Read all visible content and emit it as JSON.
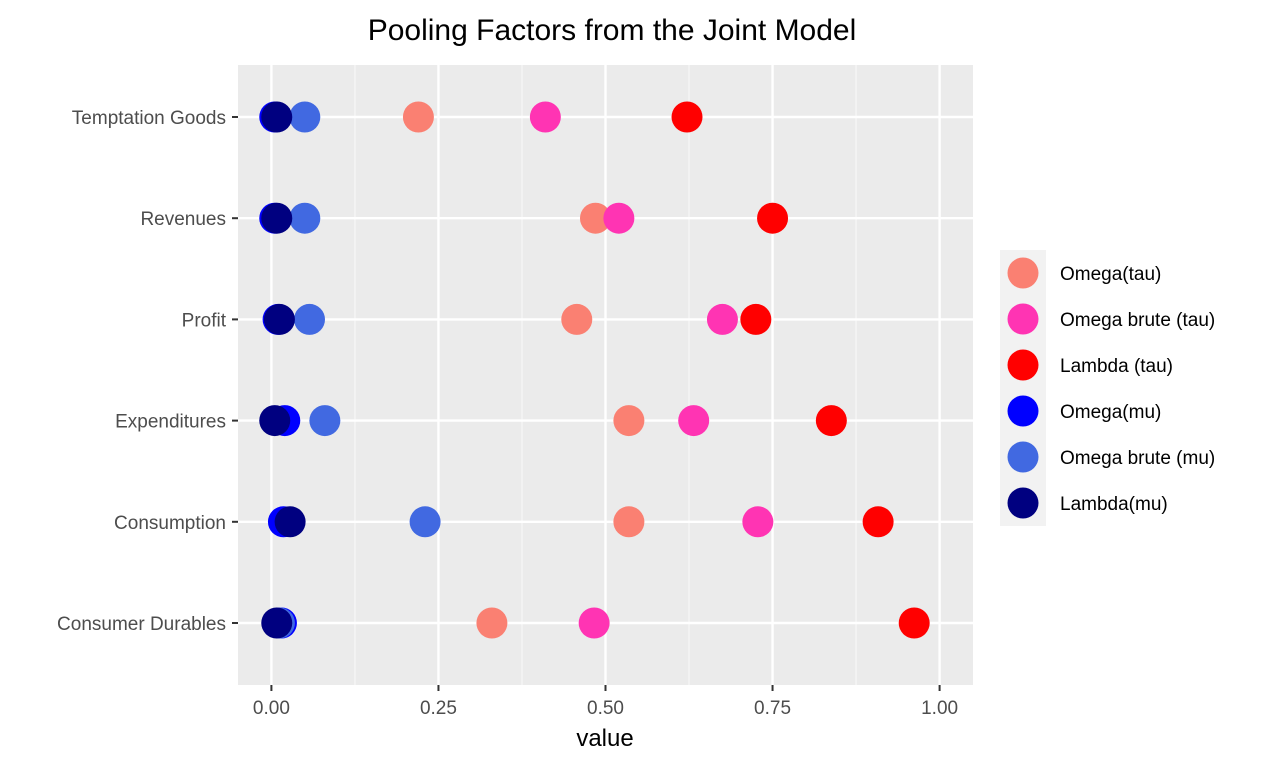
{
  "chart_data": {
    "type": "scatter",
    "title": "Pooling Factors from the Joint Model",
    "xlabel": "value",
    "ylabel": "",
    "xlim": [
      -0.05,
      1.05
    ],
    "x_ticks": [
      0,
      0.25,
      0.5,
      0.75,
      1
    ],
    "x_tick_labels": [
      "0.00",
      "0.25",
      "0.50",
      "0.75",
      "1.00"
    ],
    "categories": [
      "Temptation Goods",
      "Revenues",
      "Profit",
      "Expenditures",
      "Consumption",
      "Consumer Durables"
    ],
    "grid": true,
    "legend_position": "right",
    "series": [
      {
        "name": "Omega(tau)",
        "color": "#FA8072",
        "values": [
          0.22,
          0.485,
          0.457,
          0.535,
          0.535,
          0.33
        ]
      },
      {
        "name": "Omega brute (tau)",
        "color": "#FF34B3",
        "values": [
          0.41,
          0.52,
          0.675,
          0.632,
          0.728,
          0.483
        ]
      },
      {
        "name": "Lambda (tau)",
        "color": "#FF0000",
        "values": [
          0.622,
          0.75,
          0.725,
          0.838,
          0.908,
          0.962
        ]
      },
      {
        "name": "Omega(mu)",
        "color": "#0000FF",
        "values": [
          0.005,
          0.005,
          0.01,
          0.02,
          0.018,
          0.015
        ]
      },
      {
        "name": "Omega brute (mu)",
        "color": "#4169E1",
        "values": [
          0.05,
          0.05,
          0.057,
          0.08,
          0.23,
          0.012
        ]
      },
      {
        "name": "Lambda(mu)",
        "color": "#000080",
        "values": [
          0.008,
          0.008,
          0.012,
          0.005,
          0.028,
          0.008
        ]
      }
    ]
  }
}
